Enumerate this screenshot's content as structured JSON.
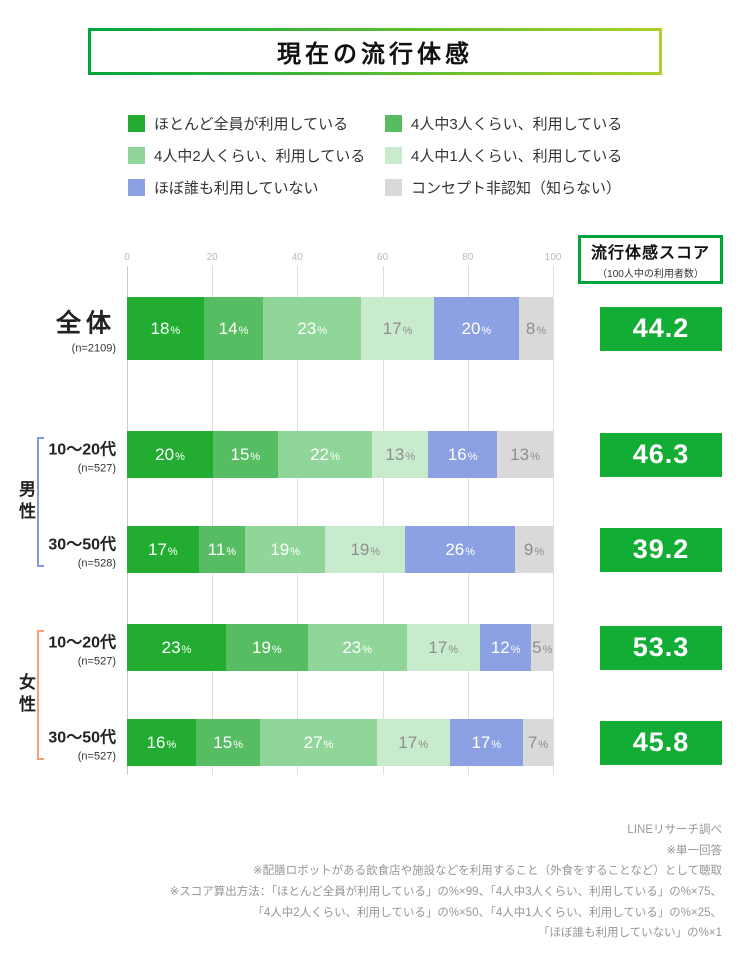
{
  "title": "現在の流行体感",
  "legend": [
    {
      "label": "ほとんど全員が利用している",
      "color": "#22ad32",
      "text_color": "#ffffff"
    },
    {
      "label": "4人中3人くらい、利用している",
      "color": "#57bd62",
      "text_color": "#ffffff"
    },
    {
      "label": "4人中2人くらい、利用している",
      "color": "#90d699",
      "text_color": "#ffffff"
    },
    {
      "label": "4人中1人くらい、利用している",
      "color": "#c9ebcd",
      "text_color": "#8e8e8e"
    },
    {
      "label": "ほぼ誰も利用していない",
      "color": "#8ba1e3",
      "text_color": "#ffffff"
    },
    {
      "label": "コンセプト非認知（知らない）",
      "color": "#d9d9d9",
      "text_color": "#8e8e8e"
    }
  ],
  "score_panel": {
    "title": "流行体感スコア",
    "subtitle": "（100人中の利用者数）"
  },
  "chart_data": {
    "type": "bar",
    "stacked": true,
    "orientation": "horizontal",
    "value_unit": "%",
    "x_axis": {
      "min": 0,
      "max": 100,
      "ticks": [
        0,
        20,
        40,
        60,
        80,
        100
      ]
    },
    "series": [
      "ほとんど全員が利用している",
      "4人中3人くらい、利用している",
      "4人中2人くらい、利用している",
      "4人中1人くらい、利用している",
      "ほぼ誰も利用していない",
      "コンセプト非認知（知らない）"
    ],
    "rows": [
      {
        "group": "",
        "label": "全体",
        "n": "(n=2109)",
        "values": [
          18,
          14,
          23,
          17,
          20,
          8
        ],
        "score": "44.2"
      },
      {
        "group": "男性",
        "label": "10〜20代",
        "n": "(n=527)",
        "values": [
          20,
          15,
          22,
          13,
          16,
          13
        ],
        "score": "46.3"
      },
      {
        "group": "男性",
        "label": "30〜50代",
        "n": "(n=528)",
        "values": [
          17,
          11,
          19,
          19,
          26,
          9
        ],
        "score": "39.2"
      },
      {
        "group": "女性",
        "label": "10〜20代",
        "n": "(n=527)",
        "values": [
          23,
          19,
          23,
          17,
          12,
          5
        ],
        "score": "53.3"
      },
      {
        "group": "女性",
        "label": "30〜50代",
        "n": "(n=527)",
        "values": [
          16,
          15,
          27,
          17,
          17,
          7
        ],
        "score": "45.8"
      }
    ]
  },
  "groups": [
    {
      "label": "男性",
      "color": "#8299df"
    },
    {
      "label": "女性",
      "color": "#f5a171"
    }
  ],
  "colors": {
    "score_box": "#12ad35",
    "panel_border": "#00a53c",
    "title_border_from": "#00a53c",
    "title_border_to": "#a9d02b"
  },
  "footnotes": [
    "LINEリサーチ調べ",
    "※単一回答",
    "※配膳ロボットがある飲食店や施設などを利用すること（外食をすることなど）として聴取",
    "※スコア算出方法：「ほとんど全員が利用している」の%×99、「4人中3人くらい、利用している」の%×75、",
    "「4人中2人くらい、利用している」の%×50、「4人中1人くらい、利用している」の%×25、",
    "「ほぼ誰も利用していない」の%×1"
  ]
}
